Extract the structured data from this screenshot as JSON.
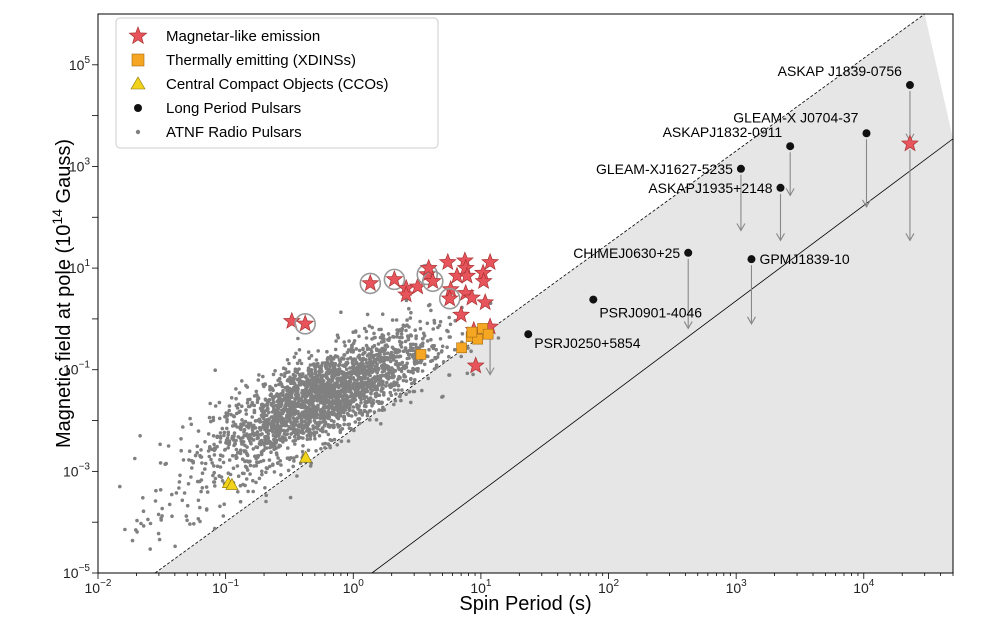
{
  "chart_data": {
    "type": "scatter",
    "xlabel": "Spin Period (s)",
    "ylabel": "Magnetic field at pole (10",
    "ylabel_sup": "14",
    "ylabel_end": " Gauss)",
    "x_scale": "log",
    "y_scale": "log",
    "xlim": [
      0.01,
      50000
    ],
    "ylim": [
      1e-05,
      1000000
    ],
    "x_ticks": [
      {
        "v": 0.01,
        "base": "10",
        "exp": "−2"
      },
      {
        "v": 0.1,
        "base": "10",
        "exp": "−1"
      },
      {
        "v": 1,
        "base": "10",
        "exp": "0"
      },
      {
        "v": 10,
        "base": "10",
        "exp": "1"
      },
      {
        "v": 100,
        "base": "10",
        "exp": "2"
      },
      {
        "v": 1000,
        "base": "10",
        "exp": "3"
      },
      {
        "v": 10000,
        "base": "10",
        "exp": "4"
      }
    ],
    "y_ticks": [
      {
        "v": 1e-05,
        "base": "10",
        "exp": "−5"
      },
      {
        "v": 0.001,
        "base": "10",
        "exp": "−3"
      },
      {
        "v": 0.1,
        "base": "10",
        "exp": "−1"
      },
      {
        "v": 10,
        "base": "10",
        "exp": "1"
      },
      {
        "v": 1000,
        "base": "10",
        "exp": "3"
      },
      {
        "v": 100000,
        "base": "10",
        "exp": "5"
      }
    ],
    "legend": {
      "position": "upper-left",
      "entries": [
        {
          "label": "Magnetar-like emission",
          "marker": "star",
          "color": "#e8545c"
        },
        {
          "label": "Thermally emitting (XDINSs)",
          "marker": "square",
          "color": "#f5a623"
        },
        {
          "label": "Central Compact Objects (CCOs)",
          "marker": "triangle",
          "color": "#f2d31b"
        },
        {
          "label": "Long Period Pulsars",
          "marker": "dot",
          "color": "#111111"
        },
        {
          "label": "ATNF Radio Pulsars",
          "marker": "small-dot",
          "color": "#808080"
        }
      ]
    },
    "colors": {
      "magnetar": "#e8545c",
      "xdins": "#f5a623",
      "cco": "#f2d31b",
      "lpp": "#111111",
      "atnf": "#808080",
      "band": "#e6e6e6"
    },
    "deathline_band": {
      "upper_line": {
        "style": "dashed",
        "points": [
          [
            0.028,
            1e-05
          ],
          [
            30000,
            1000000
          ]
        ]
      },
      "lower_line": {
        "style": "solid",
        "points": [
          [
            1.4,
            1e-05
          ],
          [
            50000,
            3500
          ]
        ]
      }
    },
    "series": {
      "magnetar": [
        {
          "x": 0.33,
          "y": 0.9,
          "ring": false
        },
        {
          "x": 0.42,
          "y": 0.8,
          "ring": true
        },
        {
          "x": 1.36,
          "y": 5,
          "ring": true
        },
        {
          "x": 2.1,
          "y": 6,
          "ring": true
        },
        {
          "x": 2.6,
          "y": 4,
          "ring": false
        },
        {
          "x": 2.6,
          "y": 3,
          "ring": false
        },
        {
          "x": 3.2,
          "y": 4.3,
          "ring": false
        },
        {
          "x": 3.8,
          "y": 7.5,
          "ring": true
        },
        {
          "x": 4.2,
          "y": 5.5,
          "ring": true
        },
        {
          "x": 3.9,
          "y": 10,
          "ring": false
        },
        {
          "x": 5.5,
          "y": 13,
          "ring": false
        },
        {
          "x": 5.8,
          "y": 3.8,
          "ring": false
        },
        {
          "x": 5.7,
          "y": 2.5,
          "ring": true
        },
        {
          "x": 6.5,
          "y": 7,
          "ring": false
        },
        {
          "x": 7.5,
          "y": 14,
          "ring": false
        },
        {
          "x": 7.6,
          "y": 10,
          "ring": false
        },
        {
          "x": 7.8,
          "y": 7,
          "ring": false
        },
        {
          "x": 7.6,
          "y": 3.2,
          "ring": false
        },
        {
          "x": 8.5,
          "y": 2.6,
          "ring": false
        },
        {
          "x": 10.4,
          "y": 8,
          "ring": false
        },
        {
          "x": 10.5,
          "y": 5.5,
          "ring": false
        },
        {
          "x": 11.8,
          "y": 13,
          "ring": false
        },
        {
          "x": 10.8,
          "y": 2.1,
          "ring": false
        },
        {
          "x": 7.0,
          "y": 1.2,
          "ring": false
        },
        {
          "x": 9.1,
          "y": 0.12,
          "ring": false
        },
        {
          "x": 8.8,
          "y": 0.6,
          "ring": false
        },
        {
          "x": 11.8,
          "y": 0.7,
          "ring": false
        },
        {
          "x": 23000,
          "y": 2800,
          "ring": false
        }
      ],
      "xdins": [
        {
          "x": 3.39,
          "y": 0.2
        },
        {
          "x": 7.06,
          "y": 0.27
        },
        {
          "x": 8.39,
          "y": 0.45
        },
        {
          "x": 9.44,
          "y": 0.4
        },
        {
          "x": 10.3,
          "y": 0.65
        },
        {
          "x": 11.4,
          "y": 0.5
        },
        {
          "x": 8.5,
          "y": 0.55
        }
      ],
      "cco": [
        {
          "x": 0.105,
          "y": 0.0006
        },
        {
          "x": 0.112,
          "y": 0.00055
        },
        {
          "x": 0.424,
          "y": 0.0019
        }
      ],
      "lpp": [
        {
          "name": "ASKAP J1839-0756",
          "x": 23000,
          "y": 40000,
          "arrow_to": 3200,
          "label_side": "left",
          "label_dy": -14
        },
        {
          "name": "GLEAM-X J0704-37",
          "x": 10500,
          "y": 4500,
          "arrow_to": 160,
          "label_side": "left",
          "label_dy": -16
        },
        {
          "name": "ASKAPJ1832-0911",
          "x": 2650,
          "y": 2500,
          "arrow_to": 270,
          "label_side": "left",
          "label_dy": -14
        },
        {
          "name": "GLEAM-XJ1627-5235",
          "x": 1090,
          "y": 900,
          "arrow_to": 55,
          "label_side": "left",
          "label_dy": 0
        },
        {
          "name": "ASKAPJ1935+2148",
          "x": 2225,
          "y": 380,
          "arrow_to": 35,
          "label_side": "left",
          "label_dy": 0
        },
        {
          "name": "CHIMEJ0630+25",
          "x": 421,
          "y": 20,
          "arrow_to": 0.65,
          "label_side": "left",
          "label_dy": 0
        },
        {
          "name": "GPMJ1839-10",
          "x": 1318,
          "y": 15,
          "arrow_to": 0.8,
          "label_side": "right",
          "label_dy": 2
        },
        {
          "name": "PSRJ0901-4046",
          "x": 76,
          "y": 2.4,
          "arrow_to": null,
          "label_side": "below-right",
          "label_dy": 18
        },
        {
          "name": "PSRJ0250+5854",
          "x": 23.5,
          "y": 0.5,
          "arrow_to": null,
          "label_side": "below-right",
          "label_dy": 14
        }
      ],
      "magnetar_arrow": {
        "x": 23000,
        "from": 2800,
        "to": 35
      },
      "magnetar_arrow2": {
        "x": 11.8,
        "from": 0.7,
        "to": 0.08
      }
    },
    "atnf_description": "Cloud of ~2500 ATNF radio pulsars centered near P≈0.6 s, B≈0.03"
  }
}
